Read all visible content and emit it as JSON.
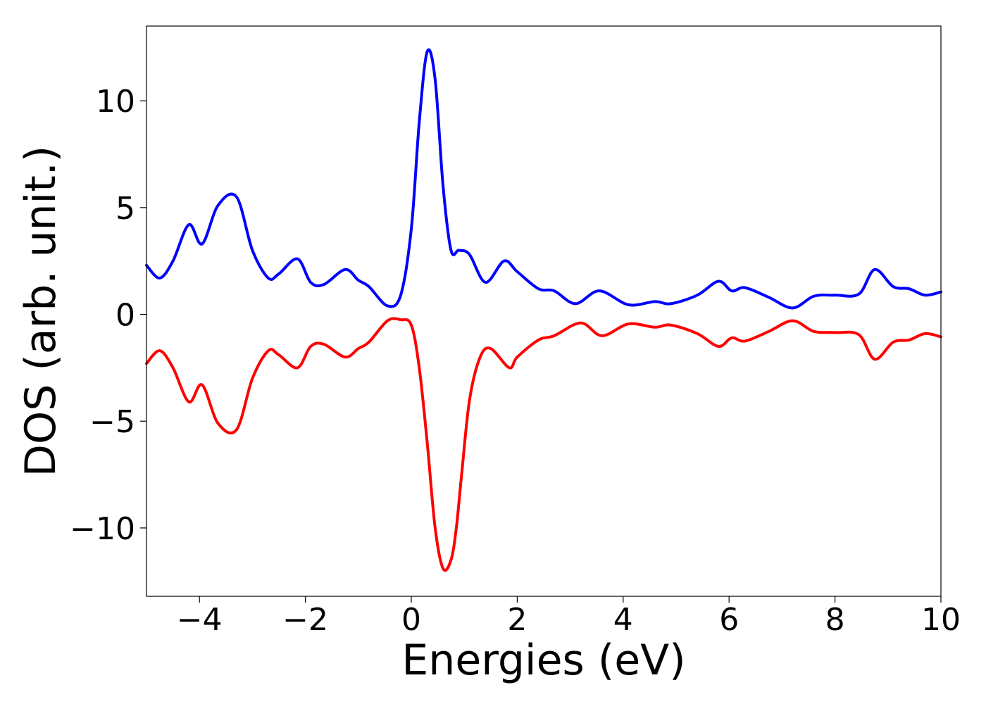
{
  "chart_data": {
    "type": "line",
    "title": "",
    "xlabel": "Energies (eV)",
    "ylabel": "DOS (arb. unit.)",
    "xlim": [
      -5,
      10
    ],
    "ylim": [
      -13.2,
      13.5
    ],
    "xticks": [
      {
        "value": -4,
        "label": "−4"
      },
      {
        "value": -2,
        "label": "−2"
      },
      {
        "value": 0,
        "label": "0"
      },
      {
        "value": 2,
        "label": "2"
      },
      {
        "value": 4,
        "label": "4"
      },
      {
        "value": 6,
        "label": "6"
      },
      {
        "value": 8,
        "label": "8"
      },
      {
        "value": 10,
        "label": "10"
      }
    ],
    "yticks": [
      {
        "value": -10,
        "label": "−10"
      },
      {
        "value": -5,
        "label": "−5"
      },
      {
        "value": 0,
        "label": "0"
      },
      {
        "value": 5,
        "label": "5"
      },
      {
        "value": 10,
        "label": "10"
      }
    ],
    "grid": false,
    "legend": "none",
    "series": [
      {
        "color": "#0000ff",
        "x": [
          -5.0,
          -4.75,
          -4.5,
          -4.2,
          -3.95,
          -3.65,
          -3.3,
          -3.0,
          -2.7,
          -2.5,
          -2.15,
          -1.9,
          -1.65,
          -1.25,
          -1.0,
          -0.8,
          -0.45,
          -0.2,
          0.0,
          0.15,
          0.3,
          0.45,
          0.6,
          0.75,
          0.9,
          1.1,
          1.4,
          1.75,
          2.0,
          2.4,
          2.7,
          3.1,
          3.55,
          4.1,
          4.6,
          4.9,
          5.4,
          5.8,
          6.05,
          6.3,
          6.75,
          7.2,
          7.6,
          8.0,
          8.45,
          8.75,
          9.1,
          9.4,
          9.7,
          10.0
        ],
        "y": [
          2.3,
          1.7,
          2.5,
          4.2,
          3.3,
          5.1,
          5.5,
          3.0,
          1.7,
          1.9,
          2.6,
          1.5,
          1.4,
          2.1,
          1.6,
          1.3,
          0.4,
          0.9,
          4.0,
          9.0,
          12.3,
          11.0,
          6.0,
          3.0,
          3.0,
          2.8,
          1.5,
          2.5,
          2.0,
          1.2,
          1.1,
          0.5,
          1.1,
          0.45,
          0.6,
          0.5,
          0.9,
          1.55,
          1.1,
          1.25,
          0.8,
          0.3,
          0.85,
          0.9,
          0.95,
          2.1,
          1.3,
          1.2,
          0.9,
          1.05
        ]
      },
      {
        "color": "#ff0000",
        "x": [
          -5.0,
          -4.75,
          -4.5,
          -4.2,
          -3.95,
          -3.65,
          -3.3,
          -3.0,
          -2.7,
          -2.5,
          -2.15,
          -1.9,
          -1.65,
          -1.25,
          -1.0,
          -0.8,
          -0.45,
          -0.2,
          0.0,
          0.15,
          0.3,
          0.45,
          0.6,
          0.75,
          0.85,
          0.95,
          1.1,
          1.3,
          1.5,
          1.85,
          2.0,
          2.4,
          2.7,
          3.2,
          3.6,
          4.1,
          4.6,
          4.9,
          5.4,
          5.8,
          6.05,
          6.3,
          6.75,
          7.2,
          7.6,
          8.0,
          8.45,
          8.75,
          9.1,
          9.4,
          9.7,
          10.0
        ],
        "y": [
          -2.3,
          -1.7,
          -2.5,
          -4.1,
          -3.3,
          -5.1,
          -5.4,
          -3.0,
          -1.7,
          -1.9,
          -2.5,
          -1.5,
          -1.4,
          -2.0,
          -1.6,
          -1.3,
          -0.3,
          -0.25,
          -0.5,
          -2.5,
          -6.0,
          -10.0,
          -11.9,
          -11.5,
          -10.0,
          -7.5,
          -4.0,
          -2.0,
          -1.6,
          -2.5,
          -2.0,
          -1.2,
          -1.0,
          -0.4,
          -1.0,
          -0.45,
          -0.6,
          -0.5,
          -0.9,
          -1.5,
          -1.1,
          -1.25,
          -0.8,
          -0.3,
          -0.8,
          -0.85,
          -0.95,
          -2.1,
          -1.3,
          -1.2,
          -0.9,
          -1.05
        ]
      }
    ]
  }
}
